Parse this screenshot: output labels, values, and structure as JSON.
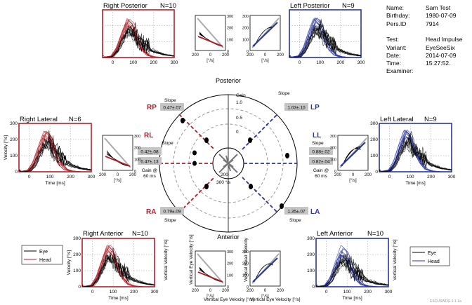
{
  "colors": {
    "right": "#b0202a",
    "left": "#2a34a0",
    "grid": "#999999",
    "eye": "#000000"
  },
  "patient": {
    "rows": [
      {
        "label": "Name:",
        "value": "Sam Test"
      },
      {
        "label": "Birthday:",
        "value": "1980-07-09"
      },
      {
        "label": "Pers.ID",
        "value": "7914"
      },
      {
        "label": "",
        "value": ""
      },
      {
        "label": "Test:",
        "value": "Head Impulse"
      },
      {
        "label": "Variant:",
        "value": "EyeSeeSix"
      },
      {
        "label": "Date:",
        "value": "2014-07-09"
      },
      {
        "label": "Time:",
        "value": "15:27:52."
      },
      {
        "label": "Examiner:",
        "value": ""
      }
    ]
  },
  "polar": {
    "top_label": "Posterior",
    "bottom_label": "Anterior",
    "gain_label": "Gain",
    "gain_ticks": [
      "1.0",
      "0.5",
      "0"
    ],
    "vel_ticks": [
      "200",
      "300 °/s"
    ],
    "canals": {
      "RP": {
        "label": "RP",
        "slope": "0.47±.07",
        "slope_label": "Slope"
      },
      "LP": {
        "label": "LP",
        "slope": "1.03±.10",
        "slope_label": "Slope"
      },
      "RL": {
        "label": "RL",
        "slope_label": "Slope",
        "slope": "0.42±.08",
        "gain60": "0.47±.13",
        "gain_label": "Gain @\n60 ms"
      },
      "LL": {
        "label": "LL",
        "slope_label": "Slope",
        "slope": "0.88±.02",
        "gain60": "0.82±.04",
        "gain_label": "Gain @\n60 ms"
      },
      "RA": {
        "label": "RA",
        "slope": "0.79±.09",
        "slope_label": "Slope"
      },
      "LA": {
        "label": "LA",
        "slope": "1.35±.07",
        "slope_label": "Slope"
      }
    }
  },
  "panels": {
    "right_posterior": {
      "title": "Right Posterior",
      "n": "N=10",
      "xticks": [
        "0",
        "100",
        "200",
        "300"
      ]
    },
    "left_posterior": {
      "title": "Left Posterior",
      "n": "N=9",
      "xticks": [
        "0",
        "100",
        "200",
        "300"
      ]
    },
    "right_lateral": {
      "title": "Right Lateral",
      "n": "N=6",
      "xticks": [
        "0",
        "100",
        "200",
        "300"
      ],
      "yticks": [
        "300",
        "200",
        "100",
        "0"
      ],
      "xlabel": "Time [ms]",
      "ylabel": "Velocity [°/s]"
    },
    "left_lateral": {
      "title": "Left Lateral",
      "n": "N=9",
      "xticks": [
        "0",
        "100",
        "200",
        "300"
      ],
      "yticks": [
        "300",
        "200",
        "100",
        "0"
      ],
      "xlabel": "Time [ms]",
      "ylabel": "Velocity [°/s]"
    },
    "right_anterior": {
      "title": "Right Anterior",
      "n": "N=10",
      "xticks": [
        "0",
        "100",
        "200",
        "300"
      ],
      "yticks": [
        "300",
        "200",
        "100",
        "0"
      ],
      "xlabel": "Time [ms]",
      "ylabel": "Velocity [°/s]"
    },
    "left_anterior": {
      "title": "Left Anterior",
      "n": "N=10",
      "xticks": [
        "0",
        "100",
        "200",
        "300"
      ],
      "yticks": [
        "300",
        "200",
        "100",
        "0"
      ],
      "xlabel": "Time [ms]",
      "ylabel": "Velocity [°/s]"
    }
  },
  "small_ticks": {
    "y": [
      "300",
      "200",
      "100",
      "0"
    ],
    "x_left": "200",
    "x_mid": "0",
    "x_right": "200",
    "unit": "[°/s]"
  },
  "legend_left": {
    "eye": "Eye",
    "head": "Head"
  },
  "legend_right": {
    "eye": "Eye",
    "head": "Head"
  },
  "axis_labels": {
    "vert_eye": "Vertical Eye Velocity [°/s]",
    "vert_head": "Vertical Head Velocity",
    "vert_vel": "Vertical Velocity [°/s]",
    "slope": "Slope"
  },
  "footer": "ESCUSWDG.1.1.1a",
  "chart_data": {
    "type": "line",
    "title": "",
    "xlabel": "Time [ms]",
    "ylabel": "Velocity [°/s]",
    "xlim": [
      -50,
      300
    ],
    "ylim": [
      0,
      300
    ],
    "x": [
      -50,
      0,
      25,
      50,
      75,
      100,
      125,
      150,
      175,
      200,
      250,
      300
    ],
    "series": [
      {
        "name": "Head",
        "values": [
          0,
          10,
          60,
          150,
          230,
          200,
          110,
          50,
          15,
          5,
          0,
          0
        ]
      },
      {
        "name": "Eye",
        "values": [
          0,
          5,
          40,
          110,
          170,
          160,
          110,
          80,
          60,
          40,
          20,
          10
        ]
      }
    ]
  }
}
